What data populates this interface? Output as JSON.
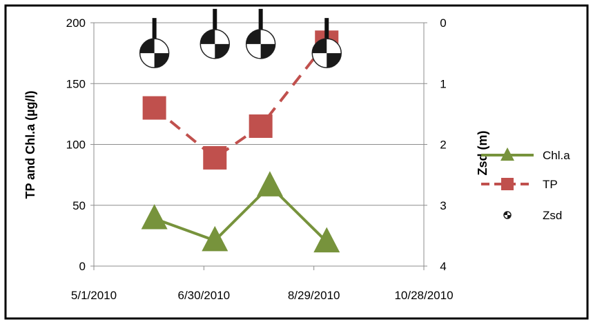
{
  "chart_data": {
    "type": "line",
    "title": "",
    "x_tick_labels": [
      "5/1/2010",
      "6/30/2010",
      "8/29/2010",
      "10/28/2010"
    ],
    "x_range": [
      "2010-05-01",
      "2010-10-28"
    ],
    "y_left_label": "TP and Chl.a (µg/l)",
    "y_left_ticks": [
      "0",
      "50",
      "100",
      "150",
      "200"
    ],
    "y_left_range": [
      0,
      200
    ],
    "y_right_label": "Zsd (m)",
    "y_right_ticks": [
      "0",
      "1",
      "2",
      "3",
      "4"
    ],
    "y_right_range": [
      0,
      4
    ],
    "y_right_inverted": true,
    "grid": "horizontal",
    "legend_position": "right",
    "series": [
      {
        "name": "Chl.a",
        "color": "#77933C",
        "marker": "triangle",
        "line": "solid",
        "axis": "left",
        "x": [
          "2010-06-03",
          "2010-07-06",
          "2010-08-05",
          "2010-09-05"
        ],
        "values": [
          39,
          21,
          66,
          20
        ]
      },
      {
        "name": "TP",
        "color": "#C0504D",
        "marker": "square",
        "line": "dashed",
        "axis": "left",
        "x": [
          "2010-06-03",
          "2010-07-06",
          "2010-07-31",
          "2010-09-05"
        ],
        "values": [
          130,
          89,
          115,
          184
        ]
      },
      {
        "name": "Zsd",
        "color": "#000000",
        "marker": "secchi-disk",
        "line": "none",
        "axis": "right",
        "x": [
          "2010-06-03",
          "2010-07-06",
          "2010-07-31",
          "2010-09-05"
        ],
        "values": [
          0.5,
          0.35,
          0.35,
          0.5
        ]
      }
    ]
  }
}
